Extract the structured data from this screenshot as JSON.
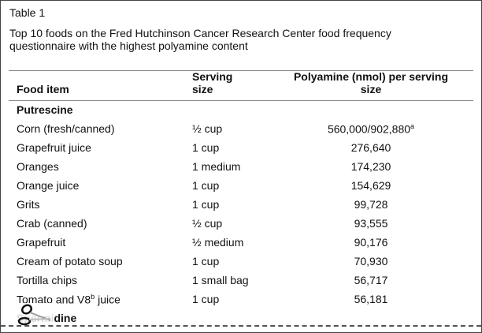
{
  "table_label": "Table 1",
  "caption_line1": "Top 10 foods on the Fred Hutchinson Cancer Research Center food frequency",
  "caption_line2": "questionnaire with the highest polyamine content",
  "headers": {
    "food_item": "Food item",
    "serving_line1": "Serving",
    "serving_line2": "size",
    "polyamine_line1": "Polyamine (nmol) per serving",
    "polyamine_line2": "size"
  },
  "sections": [
    {
      "name": "Putrescine"
    },
    {
      "name": "Spermidine"
    }
  ],
  "rows": [
    {
      "food": "Corn (fresh/canned)",
      "serving": "½ cup",
      "value": "560,000/902,880",
      "sup": "a"
    },
    {
      "food": "Grapefruit juice",
      "serving": "1 cup",
      "value": "276,640"
    },
    {
      "food": "Oranges",
      "serving": "1 medium",
      "value": "174,230"
    },
    {
      "food": "Orange juice",
      "serving": "1 cup",
      "value": "154,629"
    },
    {
      "food": "Grits",
      "serving": "1 cup",
      "value": "99,728"
    },
    {
      "food": "Crab (canned)",
      "serving": "½ cup",
      "value": "93,555"
    },
    {
      "food": "Grapefruit",
      "serving": "½ medium",
      "value": "90,176"
    },
    {
      "food": "Cream of potato soup",
      "serving": "1 cup",
      "value": "70,930"
    },
    {
      "food": "Tortilla chips",
      "serving": "1 small bag",
      "value": "56,717"
    },
    {
      "food": "Tomato and V8",
      "food_sup": "b",
      "food_suffix": " juice",
      "serving": "1 cup",
      "value": "56,181"
    }
  ]
}
